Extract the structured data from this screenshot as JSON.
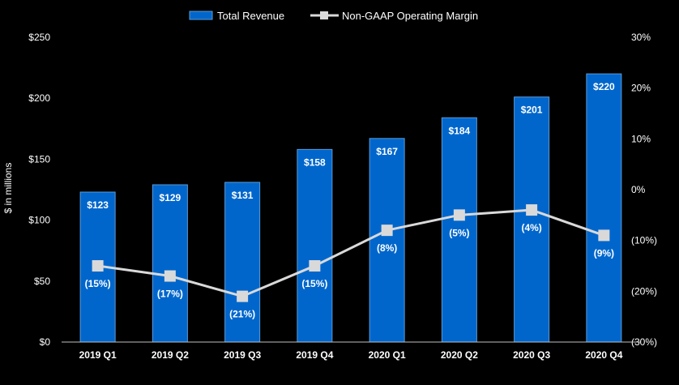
{
  "chart_data": {
    "type": "bar",
    "categories": [
      "2019 Q1",
      "2019 Q2",
      "2019 Q3",
      "2019 Q4",
      "2020 Q1",
      "2020 Q2",
      "2020 Q3",
      "2020 Q4"
    ],
    "series": [
      {
        "name": "Total Revenue",
        "kind": "bar",
        "axis": "left",
        "values": [
          123,
          129,
          131,
          158,
          167,
          184,
          201,
          220
        ],
        "labels": [
          "$123",
          "$129",
          "$131",
          "$158",
          "$167",
          "$184",
          "$201",
          "$220"
        ],
        "color": "#0066CC"
      },
      {
        "name": "Non-GAAP Operating Margin",
        "kind": "line",
        "axis": "right",
        "values": [
          -15,
          -17,
          -21,
          -15,
          -8,
          -5,
          -4,
          -9
        ],
        "labels": [
          "(15%)",
          "(17%)",
          "(21%)",
          "(15%)",
          "(8%)",
          "(5%)",
          "(4%)",
          "(9%)"
        ],
        "color": "#D9D9D9"
      }
    ],
    "ylabel": "$ in millions",
    "ylim": [
      0,
      250
    ],
    "y_ticks": [
      0,
      50,
      100,
      150,
      200,
      250
    ],
    "y_tick_labels": [
      "$0",
      "$50",
      "$100",
      "$150",
      "$200",
      "$250"
    ],
    "y2lim": [
      -30,
      30
    ],
    "y2_ticks": [
      -30,
      -20,
      -10,
      0,
      10,
      20,
      30
    ],
    "y2_tick_labels": [
      "(30%)",
      "(20%)",
      "(10%)",
      "0%",
      "10%",
      "20%",
      "30%"
    ],
    "grid": false,
    "legend_position": "top-center"
  }
}
